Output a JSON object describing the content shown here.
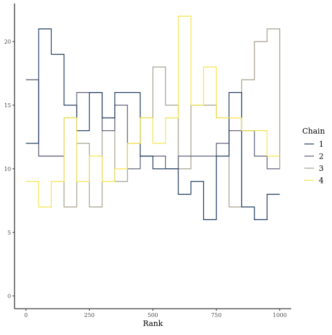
{
  "chart_data": {
    "type": "line",
    "step": true,
    "xlabel": "Rank",
    "ylabel": "",
    "xlim": [
      -45,
      1045
    ],
    "ylim": [
      -1,
      23
    ],
    "xticks": [
      0,
      250,
      500,
      750,
      1000
    ],
    "yticks": [
      0,
      5,
      10,
      15,
      20
    ],
    "grid": false,
    "legend": {
      "title": "Chain",
      "placement": "right"
    },
    "x": [
      0,
      50,
      100,
      150,
      200,
      250,
      300,
      350,
      400,
      450,
      500,
      550,
      600,
      650,
      700,
      750,
      800,
      850,
      900,
      950,
      1000
    ],
    "series": [
      {
        "name": "1",
        "color": "#1f3a5f",
        "values": [
          12,
          21,
          19,
          15,
          13,
          16,
          14,
          16,
          16,
          11,
          10,
          10,
          8,
          9,
          6,
          11,
          16,
          7,
          6,
          8,
          8
        ]
      },
      {
        "name": "2",
        "color": "#5b5f78",
        "values": [
          17,
          11,
          11,
          14,
          16,
          16,
          13,
          15,
          10,
          11,
          11,
          10,
          11,
          11,
          11,
          12,
          13,
          13,
          11,
          10,
          10
        ]
      },
      {
        "name": "3",
        "color": "#a39e8c",
        "values": [
          17,
          11,
          11,
          7,
          12,
          7,
          14,
          9,
          12,
          14,
          18,
          15,
          10,
          15,
          15,
          14,
          7,
          17,
          20,
          21,
          10
        ]
      },
      {
        "name": "4",
        "color": "#f5e34a",
        "values": [
          9,
          7,
          9,
          14,
          9,
          11,
          9,
          10,
          12,
          14,
          12,
          14,
          22,
          15,
          18,
          14,
          14,
          13,
          13,
          11,
          11
        ]
      }
    ]
  }
}
